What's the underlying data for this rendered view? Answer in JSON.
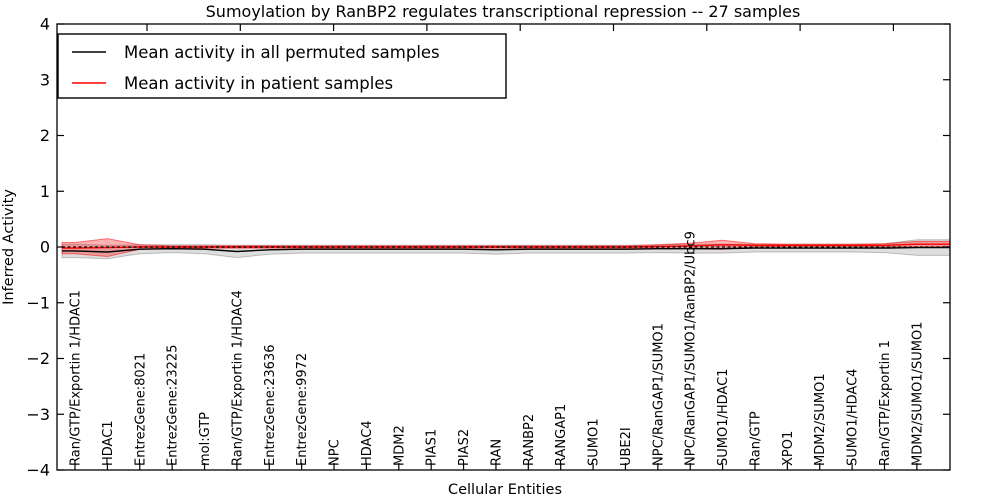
{
  "chart_data": {
    "type": "line",
    "title": "Sumoylation by RanBP2 regulates transcriptional repression -- 27 samples",
    "xlabel": "Cellular Entities",
    "ylabel": "Inferred Activity",
    "ylim": [
      -4,
      4
    ],
    "yticks": [
      4,
      3,
      2,
      1,
      0,
      -1,
      -2,
      -3,
      -4
    ],
    "yticklabels": [
      "4",
      "3",
      "2",
      "1",
      "0",
      "−1",
      "−2",
      "−3",
      "−4"
    ],
    "grid": false,
    "legend_position": "upper left",
    "categories": [
      "Ran/GTP/Exportin 1/HDAC1",
      "HDAC1",
      "EntrezGene:8021",
      "EntrezGene:23225",
      "mol:GTP",
      "Ran/GTP/Exportin 1/HDAC4",
      "EntrezGene:23636",
      "EntrezGene:9972",
      "NPC",
      "HDAC4",
      "MDM2",
      "PIAS1",
      "PIAS2",
      "RAN",
      "RANBP2",
      "RANGAP1",
      "SUMO1",
      "UBE2I",
      "NPC/RanGAP1/SUMO1",
      "NPC/RanGAP1/SUMO1/RanBP2/Ubc9",
      "SUMO1/HDAC1",
      "Ran/GTP",
      "XPO1",
      "MDM2/SUMO1",
      "SUMO1/HDAC4",
      "Ran/GTP/Exportin 1",
      "MDM2/SUMO1/SUMO1"
    ],
    "series": [
      {
        "name": "Mean activity in all permuted samples",
        "color": "#000000",
        "line_style": "solid",
        "band_fill": "rgba(0,0,0,0.13)",
        "band_edge": "rgba(0,0,0,0.22)",
        "values": [
          -0.07,
          -0.09,
          -0.04,
          -0.03,
          -0.04,
          -0.08,
          -0.05,
          -0.04,
          -0.04,
          -0.04,
          -0.04,
          -0.04,
          -0.04,
          -0.05,
          -0.04,
          -0.04,
          -0.04,
          -0.04,
          -0.03,
          -0.03,
          -0.03,
          -0.02,
          -0.02,
          -0.02,
          -0.02,
          -0.02,
          -0.01
        ],
        "band_halfwidth": [
          0.12,
          0.12,
          0.08,
          0.07,
          0.08,
          0.11,
          0.08,
          0.07,
          0.07,
          0.07,
          0.07,
          0.07,
          0.07,
          0.08,
          0.07,
          0.07,
          0.07,
          0.07,
          0.07,
          0.08,
          0.08,
          0.07,
          0.07,
          0.07,
          0.07,
          0.08,
          0.14
        ]
      },
      {
        "name": "Mean activity in patient samples",
        "color": "#ff0000",
        "line_style": "solid",
        "band_fill": "rgba(255,0,0,0.30)",
        "band_edge": "rgba(255,0,0,0.50)",
        "values": [
          -0.02,
          -0.01,
          0,
          0,
          0,
          0,
          0,
          0,
          0,
          0,
          0,
          0,
          0,
          0,
          0,
          0,
          0,
          0,
          0.01,
          0.02,
          0.04,
          0.03,
          0.03,
          0.03,
          0.03,
          0.03,
          0.05
        ],
        "band_halfwidth": [
          0.1,
          0.16,
          0.04,
          0.02,
          0.02,
          0.02,
          0.02,
          0.02,
          0.02,
          0.02,
          0.02,
          0.02,
          0.02,
          0.02,
          0.02,
          0.02,
          0.02,
          0.02,
          0.03,
          0.05,
          0.08,
          0.03,
          0.02,
          0.02,
          0.02,
          0.03,
          0.05
        ]
      }
    ],
    "reference_line": {
      "y": 0,
      "style": "dotted",
      "color": "#000000"
    }
  },
  "legend": {
    "entries": [
      {
        "label": "Mean activity in all permuted samples",
        "color": "#000000"
      },
      {
        "label": "Mean activity in patient samples",
        "color": "#ff0000"
      }
    ]
  }
}
